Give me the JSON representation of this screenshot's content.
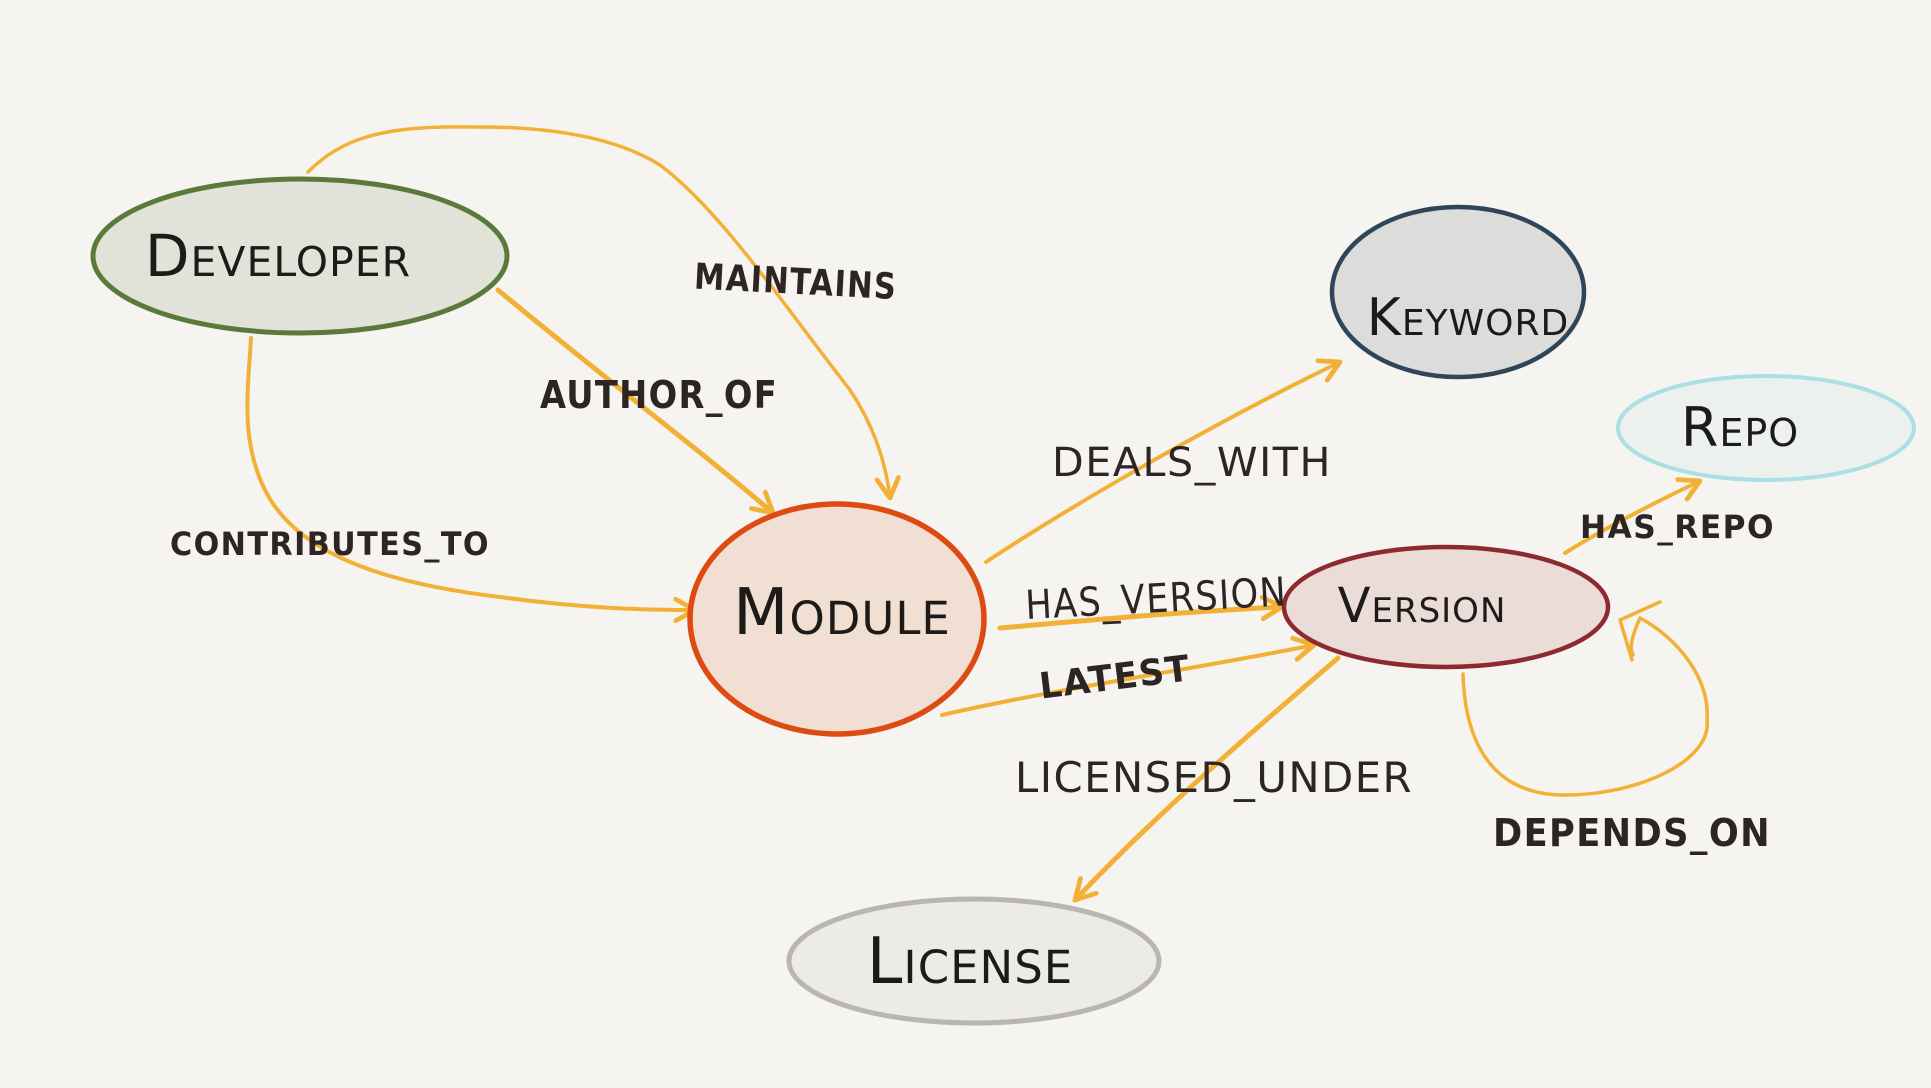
{
  "colors": {
    "background": "#f5f4f0",
    "edge_stroke": "#f2b136",
    "developer_border": "#5a7a3a",
    "developer_fill": "#e1e2d8",
    "keyword_border": "#2f455a",
    "keyword_fill": "#dcdddb",
    "repo_border": "#aadfe3",
    "repo_fill": "#ecf1ed",
    "module_border": "#dd4a12",
    "module_fill": "#f1dfd4",
    "version_border": "#8d2a2f",
    "version_fill": "#ebdcd8",
    "license_border": "#b8b6ae",
    "license_fill": "#ecebe6"
  },
  "nodes": {
    "developer": {
      "label": "Developer"
    },
    "keyword": {
      "label": "Keyword"
    },
    "repo": {
      "label": "Repo"
    },
    "module": {
      "label": "Module"
    },
    "version": {
      "label": "Version"
    },
    "license": {
      "label": "License"
    }
  },
  "edges": {
    "maintains": {
      "label": "MAINTAINS"
    },
    "author_of": {
      "label": "AUTHOR_OF"
    },
    "contributes_to": {
      "label": "CONTRIBUTES_TO"
    },
    "deals_with": {
      "label": "DEALS_WITH"
    },
    "has_version": {
      "label": "HAS_VERSION"
    },
    "latest": {
      "label": "LATEST"
    },
    "has_repo": {
      "label": "HAS_REPO"
    },
    "licensed_under": {
      "label": "LICENSED_UNDER"
    },
    "depends_on": {
      "label": "DEPENDS_ON"
    }
  }
}
